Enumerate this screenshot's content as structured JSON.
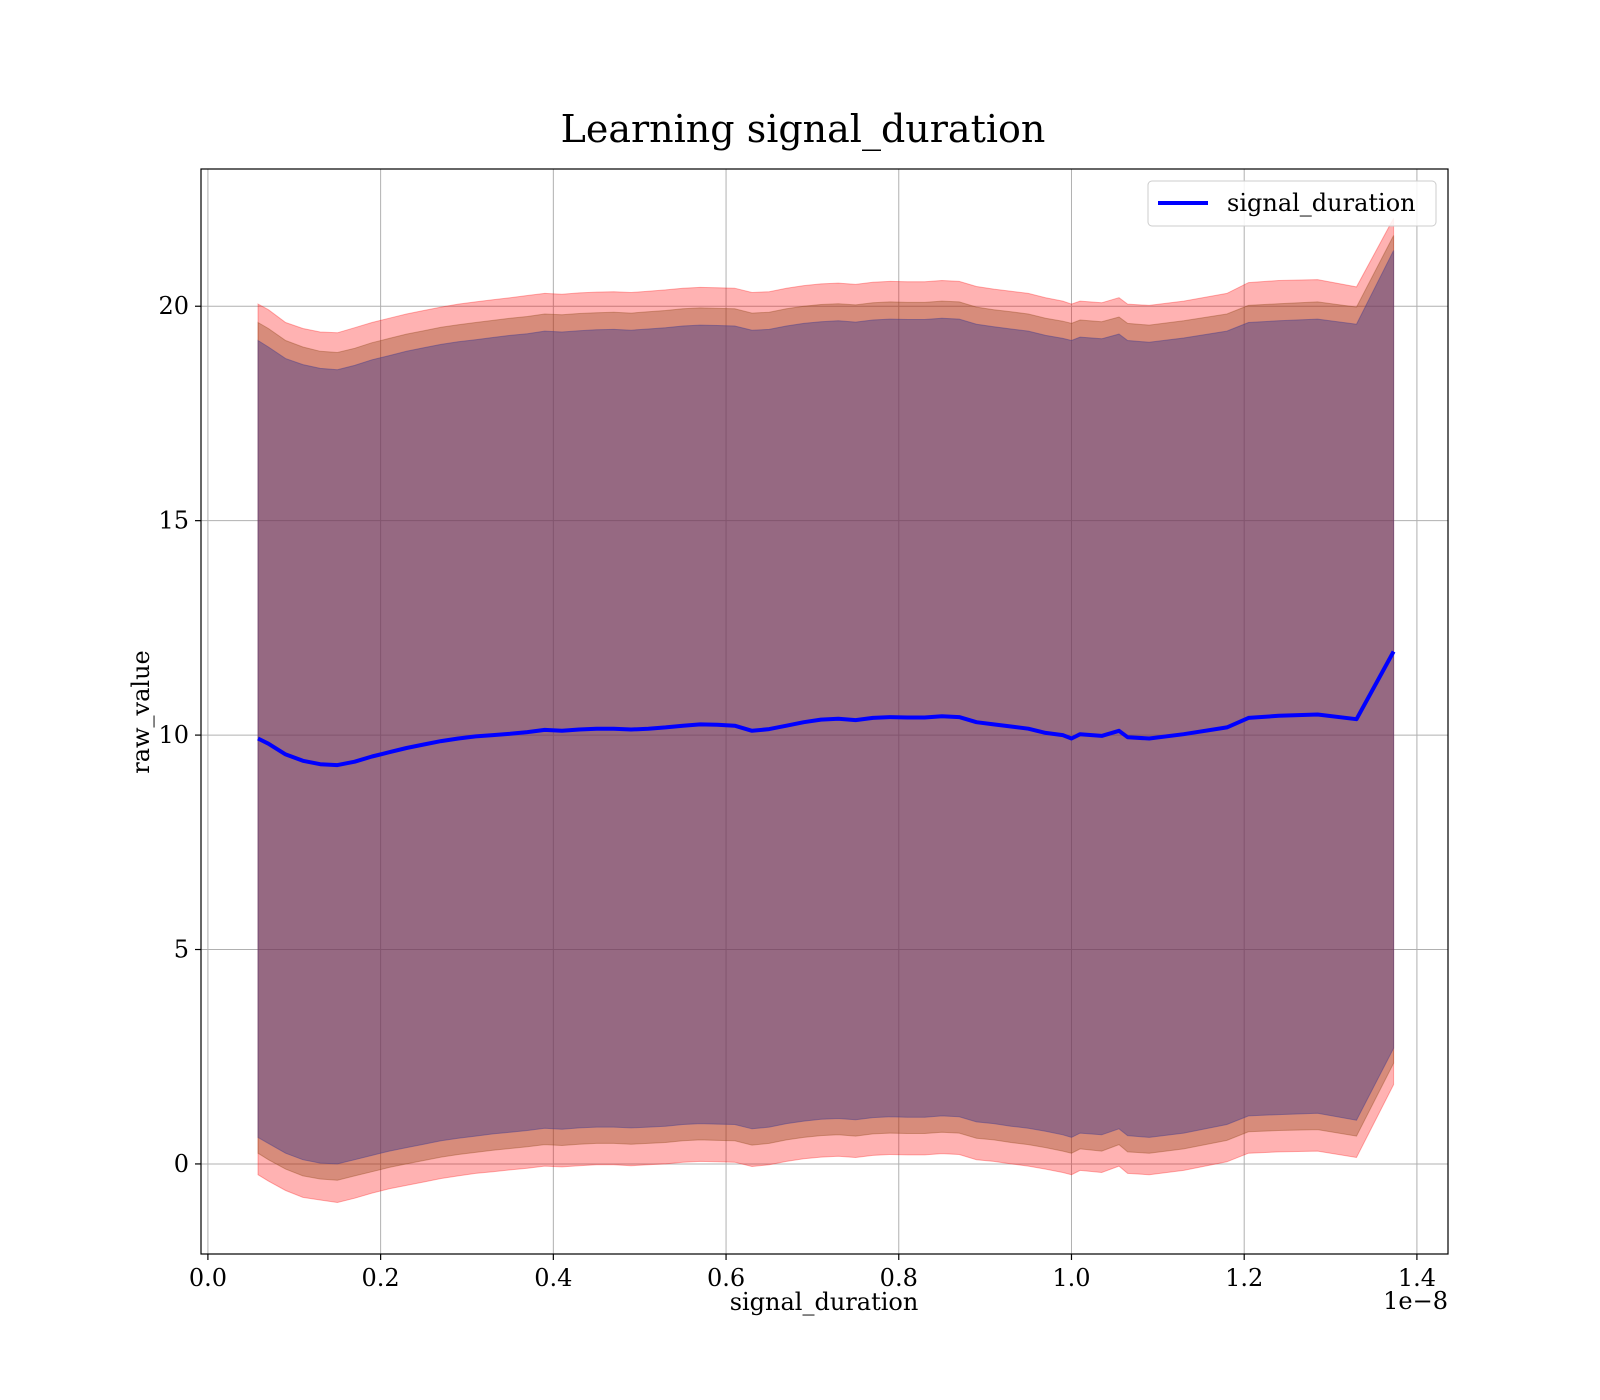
{
  "chart_data": {
    "type": "line",
    "title": "Learning signal_duration",
    "xlabel": "signal_duration",
    "ylabel": "raw_value",
    "x_offset_label": "1e−8",
    "xlim": [
      -0.008,
      1.436
    ],
    "ylim": [
      -2.1,
      23.2
    ],
    "x_ticks": [
      0.0,
      0.2,
      0.4,
      0.6,
      0.8,
      1.0,
      1.2,
      1.4
    ],
    "x_tick_labels": [
      "0.0",
      "0.2",
      "0.4",
      "0.6",
      "0.8",
      "1.0",
      "1.2",
      "1.4"
    ],
    "y_ticks": [
      0,
      5,
      10,
      15,
      20
    ],
    "y_tick_labels": [
      "0",
      "5",
      "10",
      "15",
      "20"
    ],
    "grid": true,
    "legend_position": "top-right",
    "series": [
      {
        "name": "signal_duration",
        "color": "#0000ff",
        "x": [
          0.058,
          0.07,
          0.09,
          0.11,
          0.13,
          0.15,
          0.17,
          0.19,
          0.21,
          0.23,
          0.25,
          0.27,
          0.29,
          0.31,
          0.33,
          0.35,
          0.37,
          0.39,
          0.41,
          0.43,
          0.45,
          0.47,
          0.49,
          0.51,
          0.53,
          0.55,
          0.57,
          0.59,
          0.61,
          0.63,
          0.65,
          0.67,
          0.69,
          0.71,
          0.73,
          0.75,
          0.77,
          0.79,
          0.81,
          0.83,
          0.85,
          0.87,
          0.89,
          0.91,
          0.93,
          0.95,
          0.97,
          0.99,
          1.0,
          1.01,
          1.035,
          1.055,
          1.065,
          1.09,
          1.13,
          1.18,
          1.205,
          1.24,
          1.285,
          1.33,
          1.373
        ],
        "y": [
          9.92,
          9.8,
          9.55,
          9.4,
          9.32,
          9.3,
          9.38,
          9.5,
          9.6,
          9.7,
          9.78,
          9.86,
          9.92,
          9.97,
          10.0,
          10.03,
          10.07,
          10.12,
          10.1,
          10.13,
          10.15,
          10.15,
          10.13,
          10.15,
          10.18,
          10.22,
          10.25,
          10.24,
          10.22,
          10.1,
          10.14,
          10.22,
          10.3,
          10.36,
          10.38,
          10.35,
          10.4,
          10.42,
          10.41,
          10.41,
          10.44,
          10.42,
          10.3,
          10.25,
          10.2,
          10.15,
          10.05,
          10.0,
          9.92,
          10.02,
          9.98,
          10.1,
          9.95,
          9.92,
          10.02,
          10.18,
          10.4,
          10.45,
          10.48,
          10.37,
          11.95
        ]
      }
    ],
    "bands": [
      {
        "color": "#ff0000",
        "opacity": 0.3,
        "upper": [
          20.05,
          19.92,
          19.62,
          19.48,
          19.4,
          19.38,
          19.5,
          19.62,
          19.72,
          19.82,
          19.9,
          19.98,
          20.05,
          20.1,
          20.15,
          20.2,
          20.25,
          20.3,
          20.28,
          20.31,
          20.33,
          20.34,
          20.32,
          20.35,
          20.38,
          20.42,
          20.44,
          20.43,
          20.42,
          20.32,
          20.34,
          20.42,
          20.48,
          20.52,
          20.54,
          20.51,
          20.56,
          20.58,
          20.57,
          20.57,
          20.6,
          20.58,
          20.46,
          20.4,
          20.35,
          20.3,
          20.2,
          20.12,
          20.05,
          20.12,
          20.08,
          20.2,
          20.05,
          20.02,
          20.12,
          20.3,
          20.55,
          20.6,
          20.62,
          20.45,
          22.05
        ],
        "lower": [
          -0.25,
          -0.4,
          -0.62,
          -0.78,
          -0.84,
          -0.9,
          -0.8,
          -0.68,
          -0.58,
          -0.5,
          -0.42,
          -0.34,
          -0.28,
          -0.22,
          -0.18,
          -0.14,
          -0.1,
          -0.05,
          -0.07,
          -0.04,
          -0.02,
          -0.02,
          -0.04,
          -0.02,
          0.0,
          0.04,
          0.06,
          0.05,
          0.04,
          -0.06,
          -0.02,
          0.06,
          0.12,
          0.16,
          0.18,
          0.15,
          0.2,
          0.22,
          0.21,
          0.21,
          0.24,
          0.22,
          0.1,
          0.06,
          0.0,
          -0.05,
          -0.12,
          -0.2,
          -0.25,
          -0.15,
          -0.2,
          -0.05,
          -0.22,
          -0.25,
          -0.15,
          0.05,
          0.25,
          0.28,
          0.3,
          0.15,
          1.85
        ]
      },
      {
        "color": "#8b4513",
        "opacity": 0.35,
        "upper": [
          19.62,
          19.48,
          19.2,
          19.05,
          18.95,
          18.92,
          19.02,
          19.15,
          19.25,
          19.35,
          19.43,
          19.51,
          19.57,
          19.62,
          19.67,
          19.72,
          19.76,
          19.82,
          19.8,
          19.83,
          19.85,
          19.86,
          19.84,
          19.87,
          19.9,
          19.94,
          19.96,
          19.95,
          19.94,
          19.84,
          19.86,
          19.94,
          20.0,
          20.04,
          20.06,
          20.03,
          20.08,
          20.1,
          20.09,
          20.09,
          20.12,
          20.1,
          19.98,
          19.92,
          19.87,
          19.82,
          19.72,
          19.65,
          19.6,
          19.68,
          19.64,
          19.75,
          19.6,
          19.56,
          19.66,
          19.82,
          20.02,
          20.06,
          20.1,
          19.98,
          21.65
        ],
        "lower": [
          0.25,
          0.1,
          -0.12,
          -0.28,
          -0.35,
          -0.38,
          -0.28,
          -0.18,
          -0.08,
          0.0,
          0.08,
          0.16,
          0.22,
          0.27,
          0.32,
          0.36,
          0.4,
          0.45,
          0.43,
          0.46,
          0.48,
          0.48,
          0.46,
          0.48,
          0.5,
          0.54,
          0.56,
          0.55,
          0.54,
          0.44,
          0.48,
          0.56,
          0.62,
          0.66,
          0.68,
          0.65,
          0.7,
          0.72,
          0.71,
          0.71,
          0.74,
          0.72,
          0.6,
          0.56,
          0.5,
          0.45,
          0.38,
          0.3,
          0.25,
          0.35,
          0.3,
          0.45,
          0.28,
          0.25,
          0.35,
          0.55,
          0.75,
          0.78,
          0.8,
          0.65,
          2.35
        ]
      },
      {
        "color": "#483d8b",
        "opacity": 0.45,
        "upper": [
          19.2,
          19.05,
          18.78,
          18.64,
          18.55,
          18.52,
          18.62,
          18.75,
          18.85,
          18.95,
          19.03,
          19.11,
          19.17,
          19.22,
          19.27,
          19.32,
          19.36,
          19.42,
          19.4,
          19.43,
          19.45,
          19.46,
          19.44,
          19.47,
          19.5,
          19.54,
          19.56,
          19.55,
          19.54,
          19.44,
          19.46,
          19.54,
          19.6,
          19.64,
          19.66,
          19.63,
          19.68,
          19.7,
          19.69,
          19.69,
          19.72,
          19.7,
          19.58,
          19.52,
          19.47,
          19.42,
          19.32,
          19.25,
          19.2,
          19.28,
          19.24,
          19.35,
          19.2,
          19.16,
          19.26,
          19.42,
          19.62,
          19.66,
          19.7,
          19.58,
          21.3
        ],
        "lower": [
          0.62,
          0.48,
          0.25,
          0.1,
          0.02,
          0.0,
          0.1,
          0.2,
          0.3,
          0.38,
          0.46,
          0.54,
          0.6,
          0.65,
          0.7,
          0.74,
          0.78,
          0.83,
          0.81,
          0.84,
          0.86,
          0.86,
          0.84,
          0.86,
          0.88,
          0.92,
          0.94,
          0.93,
          0.92,
          0.82,
          0.86,
          0.94,
          1.0,
          1.04,
          1.06,
          1.03,
          1.08,
          1.1,
          1.09,
          1.09,
          1.12,
          1.1,
          0.98,
          0.94,
          0.88,
          0.83,
          0.76,
          0.68,
          0.62,
          0.72,
          0.68,
          0.82,
          0.66,
          0.62,
          0.72,
          0.92,
          1.12,
          1.15,
          1.18,
          1.02,
          2.7
        ]
      }
    ]
  }
}
